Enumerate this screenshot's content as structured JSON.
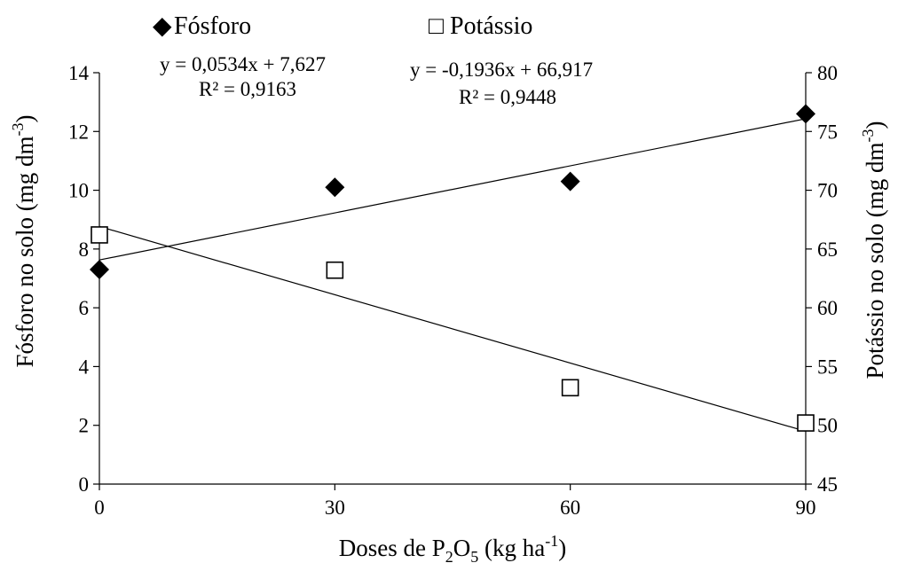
{
  "chart_data": {
    "type": "scatter",
    "x": [
      0,
      30,
      60,
      90
    ],
    "xlabel": "Doses de P2O5 (kg ha-1)",
    "xlabel_parts": {
      "pre": "Doses de P",
      "sub1": "2",
      "mid": "O",
      "sub2": "5",
      "post": " (kg ha",
      "sup": "-1",
      "end": ")"
    },
    "x_ticks": [
      "0",
      "30",
      "60",
      "90"
    ],
    "xlim": [
      0,
      90
    ],
    "ylabel_left": "Fósforo no solo (mg dm-3)",
    "ylabel_left_parts": {
      "pre": "Fósforo no solo (mg dm",
      "sup": "-3",
      "end": ")"
    },
    "ylim_left": [
      0,
      14
    ],
    "y_ticks_left": [
      "0",
      "2",
      "4",
      "6",
      "8",
      "10",
      "12",
      "14"
    ],
    "ylabel_right": "Potássio no solo (mg dm-3)",
    "ylabel_right_parts": {
      "pre": "Potássio no solo (mg dm",
      "sup": "-3",
      "end": ")"
    },
    "ylim_right": [
      45,
      80
    ],
    "y_ticks_right": [
      "45",
      "50",
      "55",
      "60",
      "65",
      "70",
      "75",
      "80"
    ],
    "grid": false,
    "legend_position": "top",
    "series": [
      {
        "name": "Fósforo",
        "axis": "left",
        "marker": "diamond-filled",
        "values": [
          7.3,
          10.1,
          10.3,
          12.6
        ],
        "trendline": {
          "slope": 0.0534,
          "intercept": 7.627
        },
        "equation": "y = 0,0534x + 7,627",
        "r2": "R² = 0,9163"
      },
      {
        "name": "Potássio",
        "axis": "right",
        "marker": "square-open",
        "values": [
          66.2,
          63.2,
          53.2,
          50.2
        ],
        "trendline": {
          "slope": -0.1936,
          "intercept": 66.917
        },
        "equation": "y = -0,1936x + 66,917",
        "r2": "R² = 0,9448"
      }
    ],
    "legend_symbols": [
      "◆",
      "□"
    ],
    "colors": {
      "marker": "#000000",
      "line": "#000000"
    }
  }
}
